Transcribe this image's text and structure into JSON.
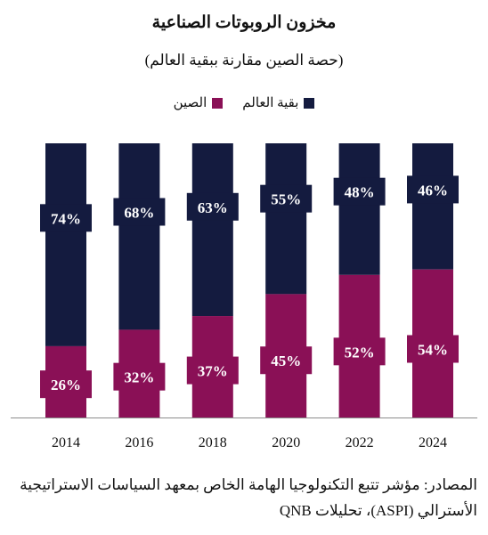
{
  "title": "مخزون الروبوتات الصناعية",
  "subtitle": "(حصة الصين مقارنة ببقية العالم)",
  "source_line1": "المصادر: مؤشر تتبع التكنولوجيا الهامة الخاص بمعهد السياسات الاستراتيجية",
  "source_line2": "الأسترالي (ASPI)، تحليلات QNB",
  "colors": {
    "rest_of_world": "#141b3f",
    "china": "#8a1056",
    "label_text": "#ffffff"
  },
  "chart_data": {
    "type": "bar",
    "stacked": true,
    "percent": true,
    "categories": [
      "2014",
      "2016",
      "2018",
      "2020",
      "2022",
      "2024"
    ],
    "series": [
      {
        "name": "الصين",
        "values": [
          26,
          32,
          37,
          45,
          52,
          54
        ],
        "labels": [
          "26%",
          "32%",
          "37%",
          "45%",
          "52%",
          "54%"
        ]
      },
      {
        "name": "بقية العالم",
        "values": [
          74,
          68,
          63,
          55,
          48,
          46
        ],
        "labels": [
          "74%",
          "68%",
          "63%",
          "55%",
          "48%",
          "46%"
        ]
      }
    ],
    "ylim": [
      0,
      100
    ],
    "grid": false,
    "legend_position": "top-center"
  }
}
